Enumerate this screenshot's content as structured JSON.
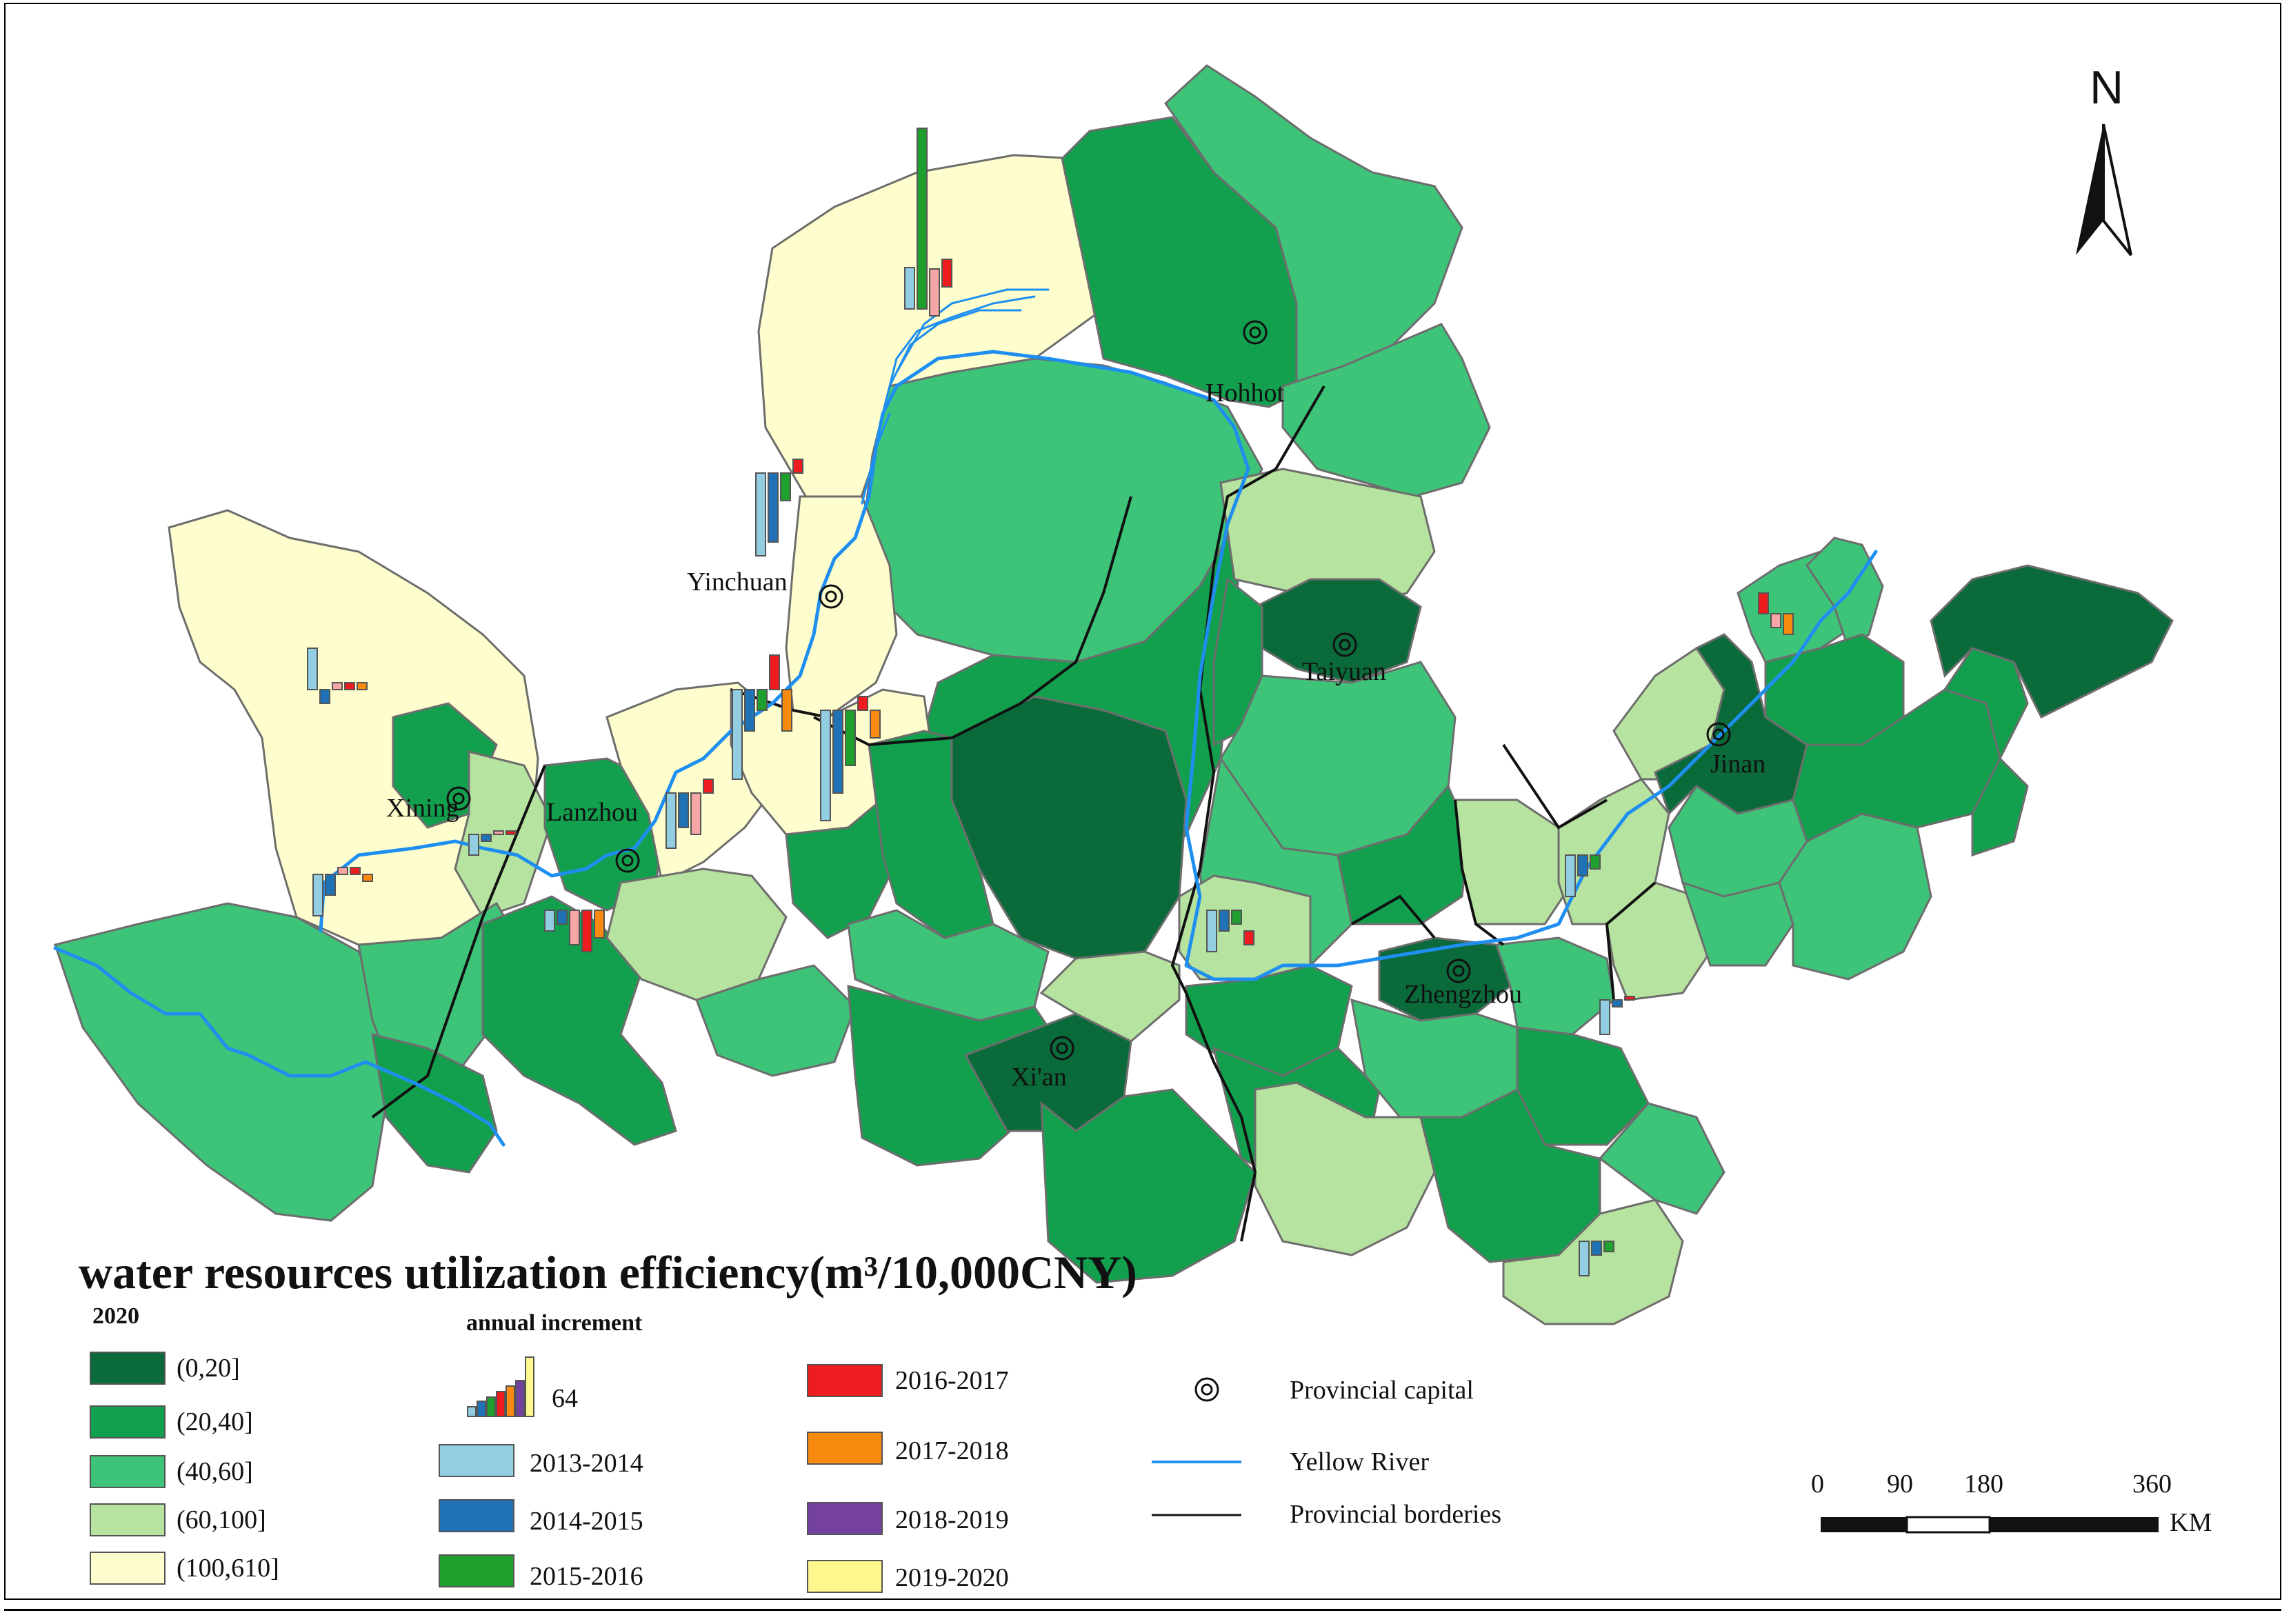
{
  "title": "water resources utilization efficiency(m³/10,000CNY)",
  "north_label": "N",
  "cities": [
    {
      "name": "Hohhot"
    },
    {
      "name": "Yinchuan"
    },
    {
      "name": "Taiyuan"
    },
    {
      "name": "Xining"
    },
    {
      "name": "Lanzhou"
    },
    {
      "name": "Jinan"
    },
    {
      "name": "Zhengzhou"
    },
    {
      "name": "Xi'an"
    }
  ],
  "legend": {
    "year": "2020",
    "classes": [
      {
        "label": "(0,20]",
        "color": "#0a6a3a"
      },
      {
        "label": "(20,40]",
        "color": "#12a04e"
      },
      {
        "label": "(40,60]",
        "color": "#3dc479"
      },
      {
        "label": "(60,100]",
        "color": "#b6e39f"
      },
      {
        "label": "(100,610]",
        "color": "#fefdcd"
      }
    ],
    "increment_head": "annual increment",
    "increment_value": "64",
    "periods": [
      {
        "label": "2013-2014",
        "color": "#92cde2"
      },
      {
        "label": "2014-2015",
        "color": "#1f72b6"
      },
      {
        "label": "2015-2016",
        "color": "#1f9f2d"
      },
      {
        "label": "2016-2017",
        "color": "#ee1c1f"
      },
      {
        "label": "2017-2018",
        "color": "#f88a0f"
      },
      {
        "label": "2018-2019",
        "color": "#7441a0"
      },
      {
        "label": "2019-2020",
        "color": "#fdf78e"
      }
    ],
    "symbols": [
      {
        "label": "Provincial capital",
        "icon": "capital-icon"
      },
      {
        "label": "Yellow River",
        "color": "#1e8ff0"
      },
      {
        "label": "Provincial borderies",
        "color": "#111111"
      }
    ]
  },
  "scale_bar": {
    "ticks": [
      "0",
      "90",
      "180",
      "360"
    ],
    "unit": "KM"
  }
}
